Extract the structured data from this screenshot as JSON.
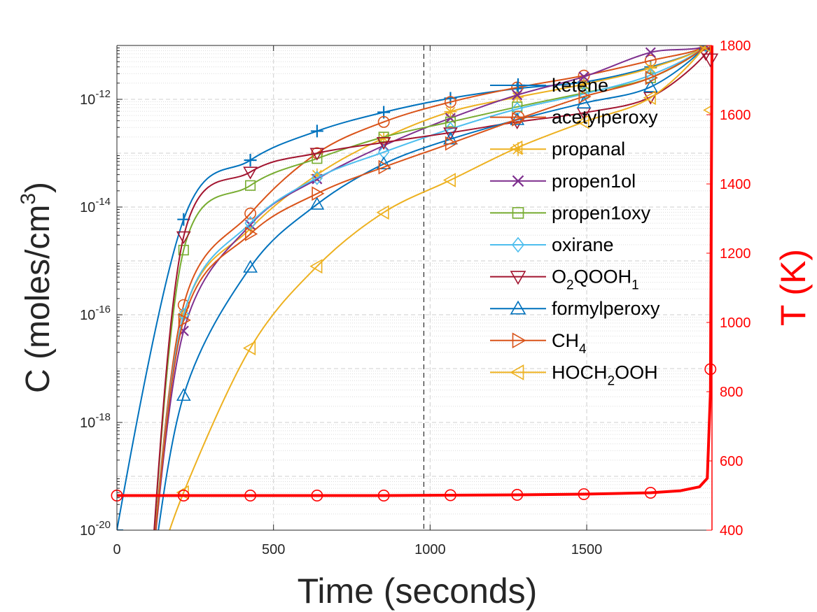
{
  "chart_data": {
    "type": "line",
    "xlabel": "Time (seconds)",
    "ylabel_left": "C (moles/cm",
    "ylabel_left_sup": "3",
    "ylabel_left_close": ")",
    "ylabel_right": "T (K)",
    "xlim": [
      0,
      1900
    ],
    "ylim_left_log10": [
      -20,
      -11
    ],
    "ylim_right": [
      400,
      1800
    ],
    "y_left_scale": "log",
    "grid": true,
    "minor_grid": true,
    "legend_position": "top-right",
    "x_ticks": [
      0,
      500,
      1000,
      1500
    ],
    "x_tick_labels": [
      "0",
      "500",
      "1000",
      "1500"
    ],
    "y_left_ticks": [
      {
        "base": "10",
        "exp": "-20",
        "value": -20
      },
      {
        "base": "10",
        "exp": "-18",
        "value": -18
      },
      {
        "base": "10",
        "exp": "-16",
        "value": -16
      },
      {
        "base": "10",
        "exp": "-14",
        "value": -14
      },
      {
        "base": "10",
        "exp": "-12",
        "value": -12
      }
    ],
    "y_right_ticks": [
      400,
      600,
      800,
      1000,
      1200,
      1400,
      1600,
      1800
    ],
    "y_right_tick_labels": [
      "400",
      "600",
      "800",
      "1000",
      "1200",
      "1400",
      "1600",
      "1800"
    ],
    "reference_line_x": 980,
    "series": [
      {
        "name": "ketene",
        "color": "#0072BD",
        "marker": "plus",
        "x": [
          0,
          213,
          426,
          639,
          852,
          1065,
          1278,
          1491,
          1704,
          1880
        ],
        "log10_y": [
          -20.0,
          -14.23,
          -13.13,
          -12.59,
          -12.24,
          -11.98,
          -11.8,
          -11.68,
          -11.4,
          -11.0
        ]
      },
      {
        "name": "acetylperoxy",
        "color": "#D95319",
        "marker": "circle",
        "x": [
          213,
          426,
          639,
          852,
          1065,
          1278,
          1491,
          1704,
          1880
        ],
        "log10_y": [
          -15.82,
          -14.12,
          -13.0,
          -12.42,
          -12.05,
          -11.78,
          -11.56,
          -11.28,
          -11.0
        ]
      },
      {
        "name": "propanal",
        "color": "#EDB120",
        "marker": "star",
        "x": [
          213,
          426,
          639,
          852,
          1065,
          1278,
          1491,
          1704,
          1880
        ],
        "log10_y": [
          -16.0,
          -14.4,
          -13.4,
          -12.72,
          -12.23,
          -11.96,
          -11.72,
          -11.42,
          -11.0
        ]
      },
      {
        "name": "propen1ol",
        "color": "#7E2F8E",
        "marker": "x",
        "x": [
          213,
          426,
          639,
          852,
          1065,
          1278,
          1491,
          1704,
          1880
        ],
        "log10_y": [
          -16.3,
          -14.33,
          -13.48,
          -12.86,
          -12.35,
          -11.92,
          -11.58,
          -11.13,
          -11.0
        ]
      },
      {
        "name": "propen1oxy",
        "color": "#77AC30",
        "marker": "square",
        "x": [
          213,
          426,
          639,
          852,
          1065,
          1278,
          1491,
          1704,
          1880
        ],
        "log10_y": [
          -14.8,
          -13.6,
          -13.1,
          -12.7,
          -12.42,
          -12.14,
          -11.88,
          -11.6,
          -11.0
        ]
      },
      {
        "name": "oxirane",
        "color": "#4DBEEE",
        "marker": "diamond",
        "x": [
          213,
          426,
          639,
          852,
          1065,
          1278,
          1491,
          1704,
          1880
        ],
        "log10_y": [
          -16.0,
          -14.3,
          -13.46,
          -12.98,
          -12.55,
          -12.18,
          -11.9,
          -11.55,
          -11.0
        ]
      },
      {
        "name": "O2QOOH1",
        "display_main": "O",
        "display_sub1": "2",
        "display_mid": "QOOH",
        "display_sub2": "1",
        "color": "#A2142F",
        "marker": "triangle-down",
        "x": [
          213,
          426,
          639,
          852,
          1065,
          1278,
          1491,
          1704,
          1880
        ],
        "log10_y": [
          -14.55,
          -13.35,
          -13.0,
          -12.8,
          -12.62,
          -12.42,
          -12.25,
          -11.96,
          -11.15
        ]
      },
      {
        "name": "formylperoxy",
        "color": "#0072BD",
        "marker": "triangle-up",
        "x": [
          213,
          426,
          639,
          852,
          1065,
          1278,
          1491,
          1704,
          1880
        ],
        "log10_y": [
          -17.5,
          -15.12,
          -13.95,
          -13.2,
          -12.74,
          -12.38,
          -12.07,
          -11.77,
          -11.0
        ]
      },
      {
        "name": "CH4",
        "display_main": "CH",
        "display_sub1": "4",
        "color": "#D95319",
        "marker": "triangle-right",
        "x": [
          213,
          426,
          639,
          852,
          1065,
          1278,
          1491,
          1704,
          1880
        ],
        "log10_y": [
          -16.1,
          -14.5,
          -13.75,
          -13.26,
          -12.82,
          -12.37,
          -11.95,
          -11.6,
          -11.0
        ]
      },
      {
        "name": "HOCH2OOH",
        "display_main": "HOCH",
        "display_sub1": "2",
        "display_mid": "OOH",
        "color": "#EDB120",
        "marker": "triangle-left",
        "x": [
          213,
          426,
          639,
          852,
          1065,
          1278,
          1491,
          1704,
          1880
        ],
        "log10_y": [
          -19.3,
          -16.62,
          -15.1,
          -14.1,
          -13.5,
          -12.9,
          -12.42,
          -11.97,
          -11.0
        ]
      }
    ],
    "temperature_series": {
      "name": "T",
      "color": "#FF0000",
      "marker": "circle",
      "x": [
        0,
        213,
        426,
        639,
        852,
        1065,
        1278,
        1491,
        1704,
        1800,
        1860,
        1885,
        1895,
        1900
      ],
      "y": [
        500,
        500,
        500,
        500,
        500,
        501,
        502,
        504,
        508,
        514,
        525,
        550,
        800,
        1800
      ]
    },
    "temperature_markers_x": [
      0,
      213,
      426,
      639,
      852,
      1065,
      1278,
      1491,
      1704
    ],
    "temperature_markers_y": [
      500,
      500,
      500,
      500,
      500,
      501,
      502,
      504,
      508
    ],
    "temperature_right_edge_markers": [
      {
        "t": 1895,
        "y": 865
      },
      {
        "t": 1895,
        "y": 1760,
        "log10_y_ref": null
      }
    ],
    "hoch2ooh_end_marker": {
      "x": 1895,
      "log10_y": -12.2
    }
  }
}
